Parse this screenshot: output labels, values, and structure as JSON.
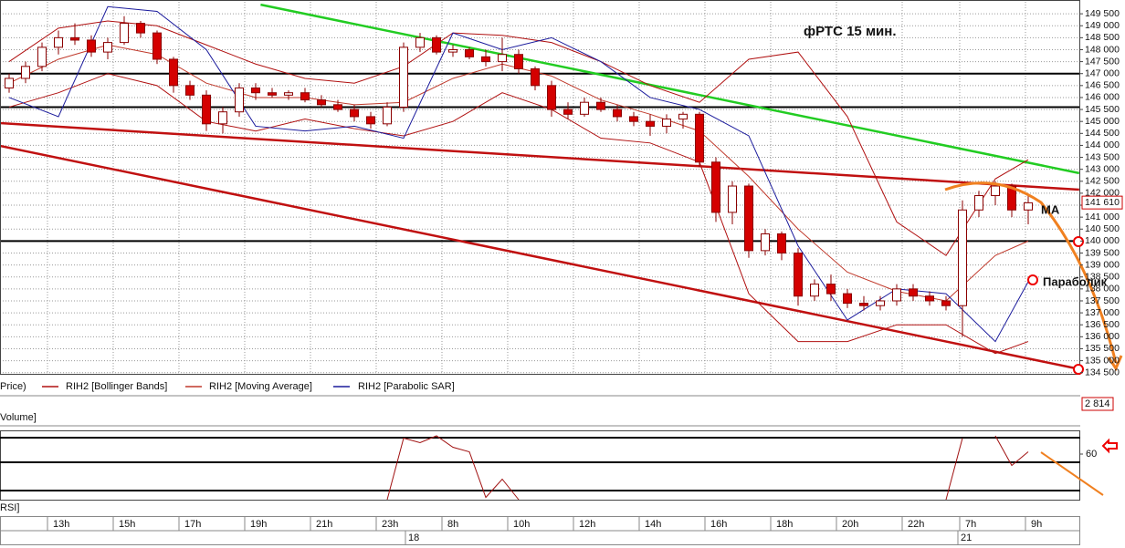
{
  "chart_data": {
    "type": "candlestick",
    "title": "фРТС   15 мин.",
    "open": [
      146400,
      146800,
      147300,
      148100,
      148500,
      148400,
      147900,
      148300,
      149100,
      148700,
      147600,
      146500,
      146100,
      144900,
      145400,
      146400,
      146200,
      146100,
      146200,
      145900,
      145700,
      145500,
      145200,
      144900,
      145600,
      148100,
      148500,
      147900,
      148000,
      147700,
      147500,
      147800,
      147200,
      146500,
      145500,
      145300,
      145800,
      145500,
      145200,
      145000,
      144800,
      145100,
      145300,
      143300,
      141200,
      142300,
      139600,
      140300,
      139500,
      137700,
      138200,
      137800,
      137400,
      137300,
      137500,
      138000,
      137700,
      137500,
      137300,
      141300,
      141900,
      142300,
      141300
    ],
    "high": [
      147000,
      147500,
      148300,
      148800,
      149100,
      148600,
      148500,
      149400,
      149200,
      148800,
      147700,
      146700,
      146300,
      145600,
      146600,
      146600,
      146400,
      146300,
      146400,
      146100,
      145900,
      145700,
      145400,
      145800,
      148300,
      148700,
      148600,
      148200,
      148100,
      148000,
      148500,
      148000,
      147300,
      146700,
      145800,
      146000,
      146000,
      145700,
      145400,
      145300,
      145300,
      145400,
      145400,
      143500,
      142500,
      142400,
      140500,
      140400,
      139700,
      138400,
      138600,
      138000,
      137700,
      137700,
      138200,
      138200,
      137900,
      137700,
      141700,
      142100,
      142500,
      142400,
      141900
    ],
    "low": [
      146200,
      146600,
      147100,
      147800,
      148200,
      147700,
      147600,
      148200,
      148500,
      147400,
      146200,
      145900,
      144600,
      144500,
      145200,
      145900,
      146000,
      145900,
      145800,
      145600,
      145400,
      145000,
      144700,
      144800,
      145400,
      147900,
      147800,
      147700,
      147600,
      147300,
      147100,
      147000,
      146300,
      145200,
      145100,
      145200,
      145400,
      145000,
      144800,
      144400,
      144500,
      144700,
      143100,
      140800,
      140700,
      139300,
      139400,
      139200,
      137300,
      137500,
      137500,
      137200,
      137100,
      137100,
      137300,
      137500,
      137300,
      137100,
      136000,
      141000,
      141500,
      141000,
      140700
    ],
    "close": [
      146800,
      147300,
      148100,
      148500,
      148400,
      147900,
      148300,
      149100,
      148700,
      147600,
      146500,
      146100,
      144900,
      145400,
      146400,
      146200,
      146100,
      146200,
      145900,
      145700,
      145500,
      145200,
      144900,
      145600,
      148100,
      148500,
      147900,
      148000,
      147700,
      147500,
      147800,
      147200,
      146500,
      145500,
      145300,
      145800,
      145500,
      145200,
      145000,
      144800,
      145100,
      145300,
      143300,
      141200,
      142300,
      139600,
      140300,
      139500,
      137700,
      138200,
      137800,
      137400,
      137300,
      137500,
      138000,
      137700,
      137500,
      137300,
      141300,
      141900,
      142300,
      141300,
      141600
    ],
    "xlim": [
      -0.5556,
      65.1667
    ],
    "ylim": [
      134450,
      150000
    ],
    "yticks": [
      {
        "value": 134500,
        "label": "134 500"
      },
      {
        "value": 135000,
        "label": "135 000"
      },
      {
        "value": 135500,
        "label": "135 500"
      },
      {
        "value": 136000,
        "label": "136 000"
      },
      {
        "value": 136500,
        "label": "136 500"
      },
      {
        "value": 137000,
        "label": "137 000"
      },
      {
        "value": 137500,
        "label": "137 500"
      },
      {
        "value": 138000,
        "label": "138 000"
      },
      {
        "value": 138500,
        "label": "138 500"
      },
      {
        "value": 139000,
        "label": "139 000"
      },
      {
        "value": 139500,
        "label": "139 500"
      },
      {
        "value": 140000,
        "label": "140 000"
      },
      {
        "value": 140500,
        "label": "140 500"
      },
      {
        "value": 141000,
        "label": "141 000"
      },
      {
        "value": 141500,
        "label": "141 500"
      },
      {
        "value": 142000,
        "label": "142 000"
      },
      {
        "value": 142500,
        "label": "142 500"
      },
      {
        "value": 143000,
        "label": "143 000"
      },
      {
        "value": 143500,
        "label": "143 500"
      },
      {
        "value": 144000,
        "label": "144 000"
      },
      {
        "value": 144500,
        "label": "144 500"
      },
      {
        "value": 145000,
        "label": "145 000"
      },
      {
        "value": 145500,
        "label": "145 500"
      },
      {
        "value": 146000,
        "label": "146 000"
      },
      {
        "value": 146500,
        "label": "146 500"
      },
      {
        "value": 147000,
        "label": "147 000"
      },
      {
        "value": 147500,
        "label": "147 500"
      },
      {
        "value": 148000,
        "label": "148 000"
      },
      {
        "value": 148500,
        "label": "148 500"
      },
      {
        "value": 149000,
        "label": "149 000"
      },
      {
        "value": 149500,
        "label": "149 500"
      }
    ],
    "grid": true,
    "up_color": "#ffffff",
    "down_color": "#d40000",
    "candle_edge": "#8b0000",
    "last_price": {
      "value": 141610,
      "label": "141 610"
    },
    "price_legend": "Price)",
    "indicator_x": [
      0,
      3,
      6,
      9,
      12,
      15,
      18,
      21,
      24,
      27,
      30,
      33,
      36,
      39,
      42,
      45,
      48,
      51,
      54,
      57,
      60,
      62
    ],
    "bollinger": {
      "name": "RIH2 [Bollinger Bands]",
      "color": "#b01010",
      "upper": [
        147500,
        148900,
        149200,
        149000,
        148200,
        147400,
        146800,
        146600,
        147300,
        148700,
        148600,
        148300,
        147500,
        146500,
        145800,
        147600,
        147900,
        145200,
        140800,
        139400,
        142600,
        143400
      ],
      "lower": [
        145600,
        146200,
        147000,
        146500,
        145000,
        144600,
        145100,
        144700,
        144400,
        145000,
        146200,
        145500,
        144300,
        144100,
        143300,
        137800,
        135800,
        135800,
        136500,
        136500,
        135300,
        135800
      ]
    },
    "moving_average": {
      "name": "RIH2 [Moving Average]",
      "color": "#c0392b",
      "values": [
        146600,
        147600,
        148200,
        147800,
        146600,
        146000,
        146000,
        145700,
        145800,
        146800,
        147400,
        146900,
        145900,
        145300,
        144600,
        142700,
        140500,
        138700,
        137900,
        137500,
        139400,
        140000
      ]
    },
    "parabolic_sar": {
      "name": "RIH2 [Parabolic SAR]",
      "color": "#1a1a9c",
      "values": [
        146000,
        145200,
        149800,
        149600,
        148000,
        144800,
        144600,
        144800,
        144300,
        148700,
        148000,
        148500,
        147500,
        146000,
        145500,
        144400,
        139800,
        136700,
        138000,
        137800,
        135800,
        138300
      ]
    },
    "levels": [
      147000,
      145600,
      140000
    ],
    "trendlines": [
      {
        "color": "#22cc22",
        "x": [
          15.3,
          65.1
        ],
        "values": [
          149880,
          142840
        ]
      },
      {
        "color": "#c01010",
        "x": [
          -0.56,
          65.1
        ],
        "values": [
          144930,
          142150
        ]
      },
      {
        "color": "#c01010",
        "x": [
          -0.56,
          65.1
        ],
        "values": [
          143980,
          134650
        ]
      }
    ],
    "annotations": [
      "МА",
      "Параболик"
    ],
    "volume": {
      "label": "Volume]",
      "last": {
        "value": 2814,
        "label": "2 814"
      }
    },
    "rsi": {
      "label": "RSI]",
      "color": "#a01010",
      "ylim": [
        20,
        80
      ],
      "yticks": [
        60
      ],
      "values": [
        null,
        null,
        null,
        null,
        null,
        null,
        null,
        null,
        null,
        null,
        null,
        null,
        null,
        null,
        null,
        null,
        null,
        null,
        null,
        null,
        null,
        null,
        null,
        20,
        74,
        70,
        76,
        66,
        62,
        22,
        38,
        20,
        null,
        null,
        null,
        null,
        null,
        null,
        null,
        null,
        null,
        null,
        null,
        null,
        null,
        null,
        null,
        null,
        null,
        null,
        null,
        null,
        null,
        null,
        null,
        null,
        null,
        20,
        74,
        null,
        76,
        50,
        62
      ]
    },
    "time_labels": [
      "13h",
      "15h",
      "17h",
      "19h",
      "21h",
      "23h",
      "8h",
      "10h",
      "12h",
      "14h",
      "16h",
      "18h",
      "20h",
      "22h",
      "7h",
      "9h"
    ],
    "date_labels": [
      "18",
      "21"
    ]
  }
}
